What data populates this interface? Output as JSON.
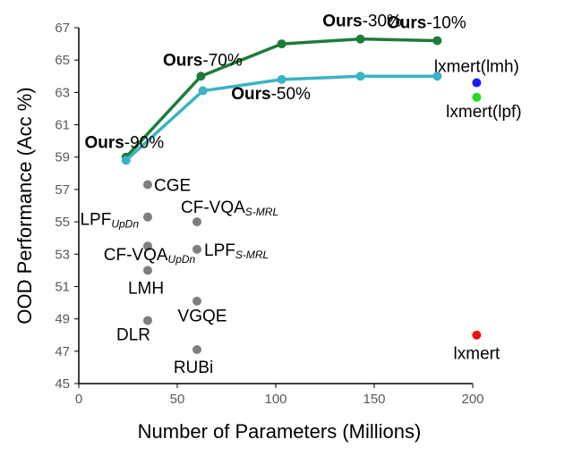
{
  "chart_data": {
    "type": "scatter",
    "title": "",
    "xlabel": "Number of Parameters (Millions)",
    "ylabel": "OOD Performance (Acc %)",
    "xlim": [
      0,
      200
    ],
    "ylim": [
      45,
      67
    ],
    "xticks": [
      0,
      50,
      100,
      150,
      200
    ],
    "yticks": [
      45,
      47,
      49,
      51,
      53,
      55,
      57,
      59,
      61,
      63,
      65,
      67
    ],
    "grid": false,
    "legend": "none",
    "series": [
      {
        "color": "#1e7b3c",
        "mode": "line",
        "points": [
          {
            "x": 24,
            "y": 59.0,
            "label_bold": "Ours",
            "label_rest": "-90%"
          },
          {
            "x": 62,
            "y": 64.0,
            "label_bold": "Ours",
            "label_rest": "-70%"
          },
          {
            "x": 103,
            "y": 66.0,
            "label_bold": "",
            "label_rest": ""
          },
          {
            "x": 143,
            "y": 66.3,
            "label_bold": "Ours",
            "label_rest": "-30%"
          },
          {
            "x": 182,
            "y": 66.2,
            "label_bold": "Ours",
            "label_rest": "-10%"
          }
        ]
      },
      {
        "color": "#3ab3c4",
        "mode": "line",
        "points": [
          {
            "x": 24,
            "y": 58.8
          },
          {
            "x": 63,
            "y": 63.1
          },
          {
            "x": 103,
            "y": 63.8,
            "label_bold": "Ours",
            "label_rest": "-50%"
          },
          {
            "x": 143,
            "y": 64.0
          },
          {
            "x": 182,
            "y": 64.0
          }
        ]
      }
    ],
    "baselines": [
      {
        "x": 35,
        "y": 57.3,
        "label": "CGE",
        "sub": "",
        "color": "#7f7f7f"
      },
      {
        "x": 35,
        "y": 55.3,
        "label": "LPF",
        "sub": "UpDn",
        "color": "#7f7f7f"
      },
      {
        "x": 60,
        "y": 55.0,
        "label": "CF-VQA",
        "sub": "S-MRL",
        "color": "#7f7f7f"
      },
      {
        "x": 35,
        "y": 53.5,
        "label": "CF-VQA",
        "sub": "UpDn",
        "color": "#7f7f7f"
      },
      {
        "x": 60,
        "y": 53.3,
        "label": "LPF",
        "sub": "S-MRL",
        "color": "#7f7f7f"
      },
      {
        "x": 35,
        "y": 52.0,
        "label": "LMH",
        "sub": "",
        "color": "#7f7f7f"
      },
      {
        "x": 60,
        "y": 50.1,
        "label": "VGQE",
        "sub": "",
        "color": "#7f7f7f"
      },
      {
        "x": 35,
        "y": 48.9,
        "label": "DLR",
        "sub": "",
        "color": "#7f7f7f"
      },
      {
        "x": 60,
        "y": 47.1,
        "label": "RUBi",
        "sub": "",
        "color": "#7f7f7f"
      },
      {
        "x": 202,
        "y": 63.6,
        "label": "lxmert(lmh)",
        "sub": "",
        "color": "#1a1aff"
      },
      {
        "x": 202,
        "y": 62.7,
        "label": "lxmert(lpf)",
        "sub": "",
        "color": "#22dd22"
      },
      {
        "x": 202,
        "y": 48.0,
        "label": "lxmert",
        "sub": "",
        "color": "#ee1111"
      }
    ]
  }
}
